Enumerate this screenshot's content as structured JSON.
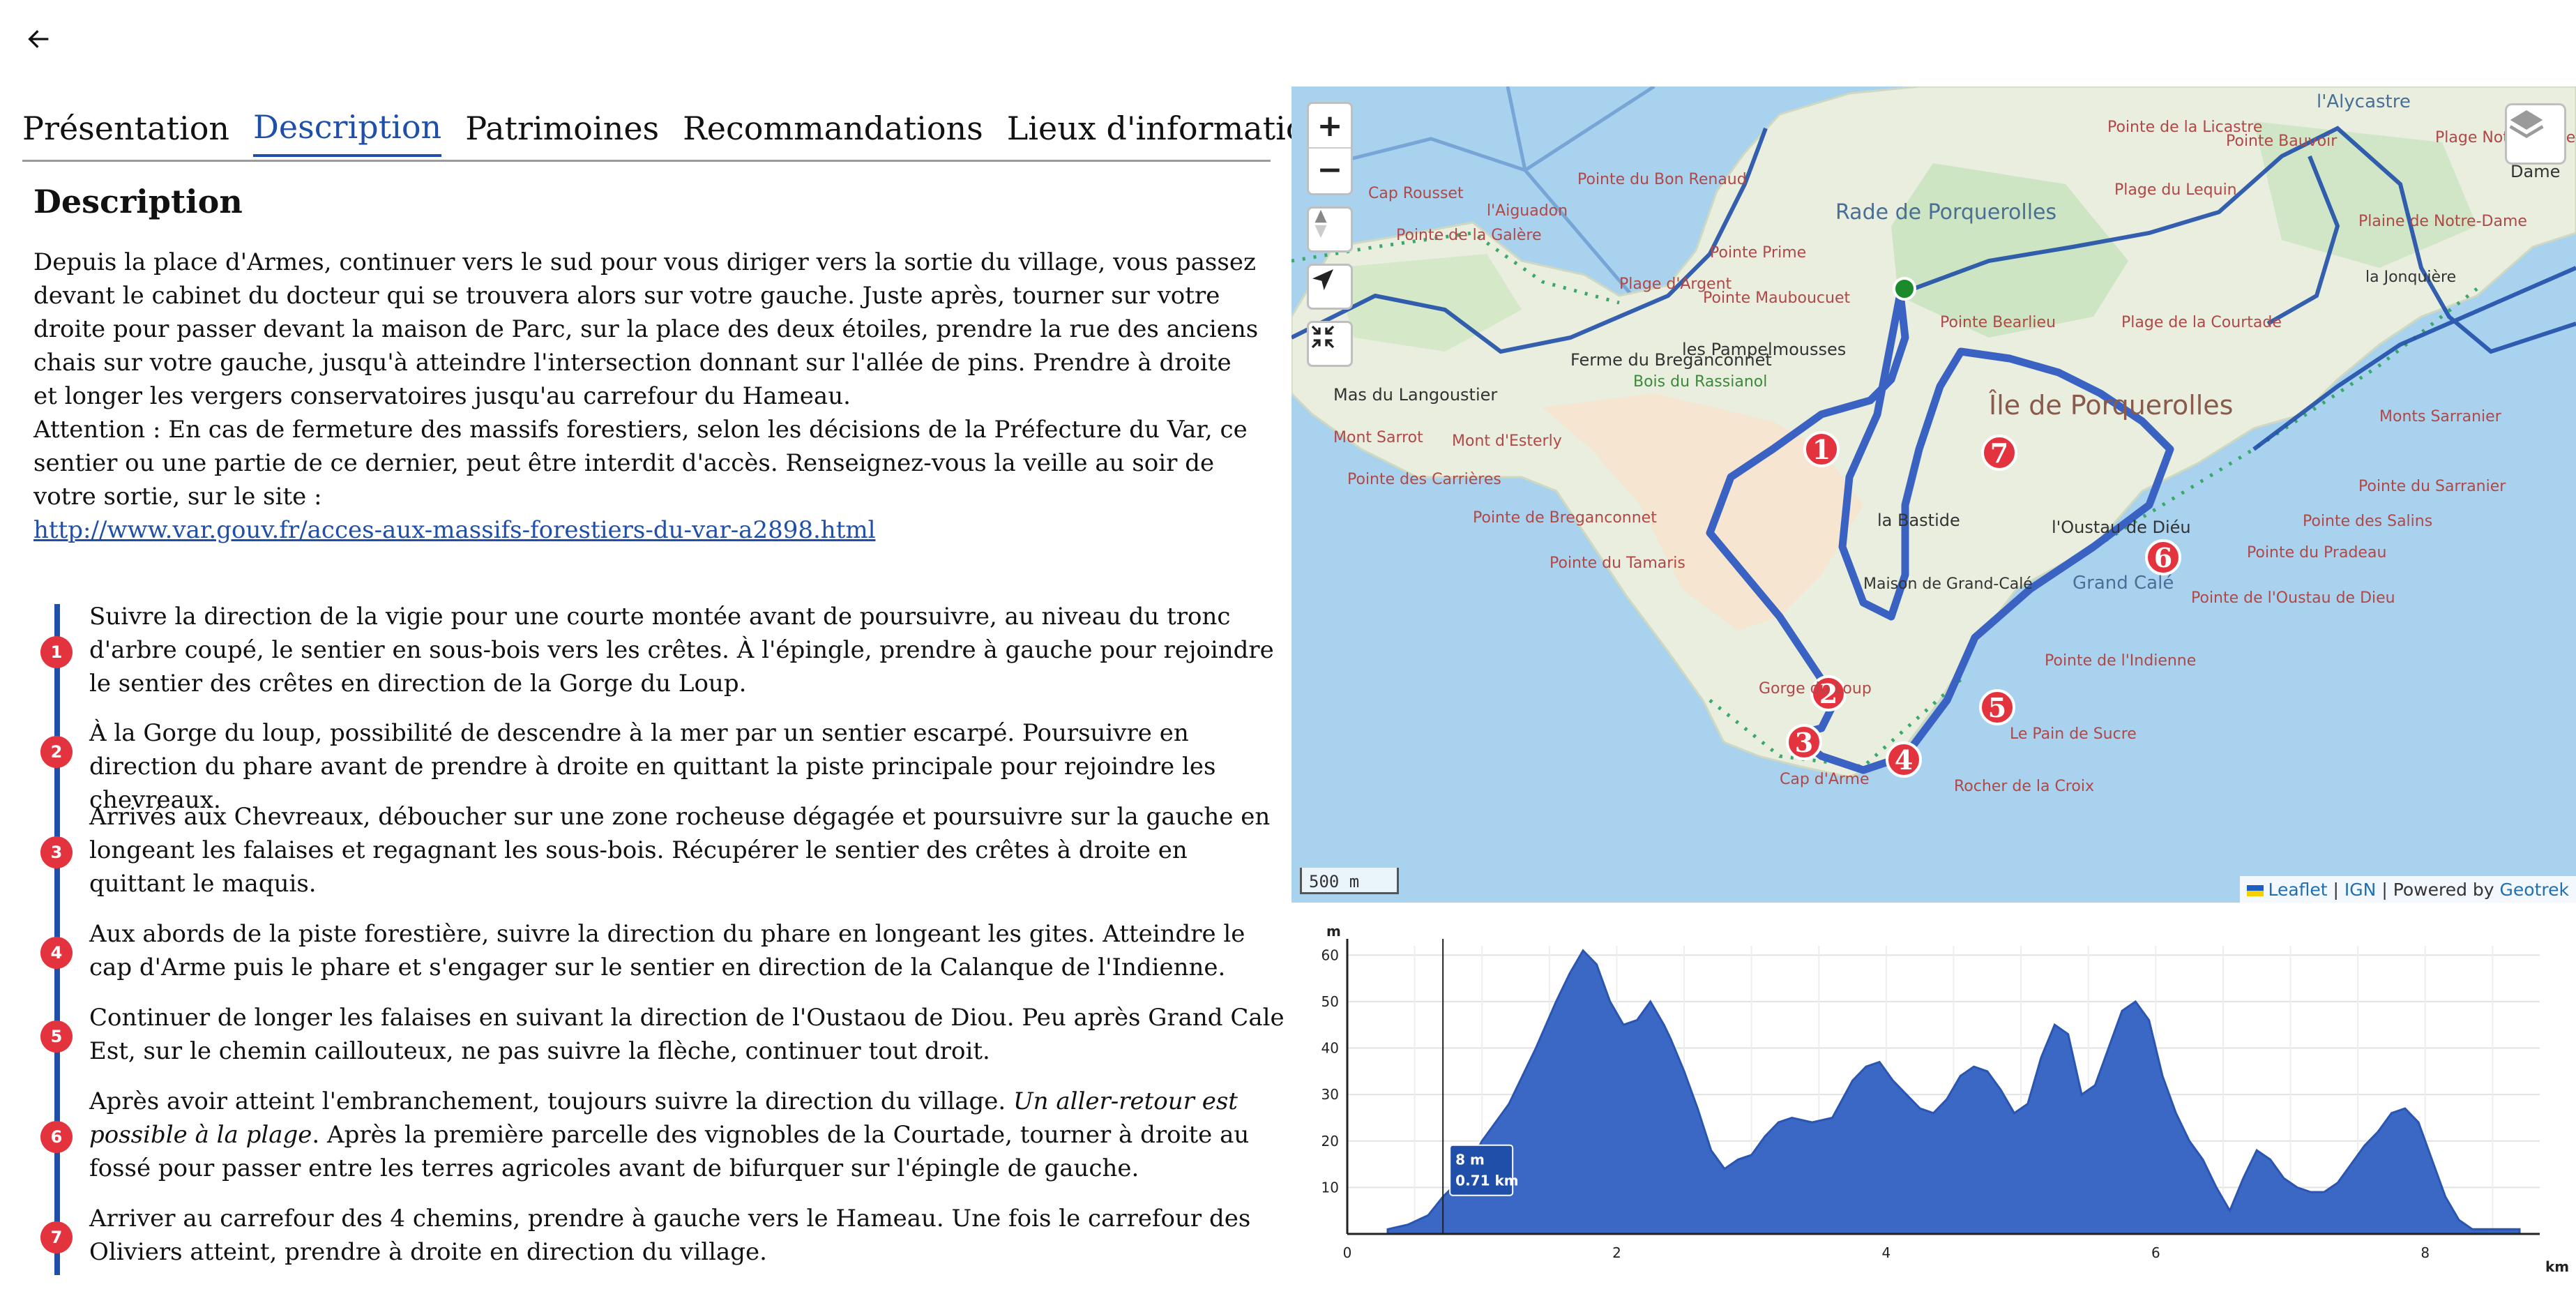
{
  "nav": {
    "back_icon": "arrow-left-icon"
  },
  "tabs": [
    {
      "label": "Présentation",
      "active": false
    },
    {
      "label": "Description",
      "active": true
    },
    {
      "label": "Patrimoines",
      "active": false
    },
    {
      "label": "Recommandations",
      "active": false
    },
    {
      "label": "Lieux d'informations",
      "active": false
    }
  ],
  "description": {
    "title": "Description",
    "paragraph1": "Depuis la place d'Armes, continuer vers le sud pour vous diriger vers la sortie du village, vous passez devant le cabinet du docteur qui se trouvera alors sur votre gauche. Juste après, tourner sur votre droite pour passer devant la maison de Parc, sur la place des deux étoiles, prendre la rue des anciens chais sur votre gauche, jusqu'à atteindre l'intersection donnant sur l'allée de pins. Prendre à droite et longer les vergers conservatoires jusqu'au carrefour du Hameau.",
    "paragraph2": "Attention : En cas de fermeture des massifs forestiers, selon les décisions de la Préfecture du Var, ce sentier ou une partie de ce dernier, peut être interdit d'accès.  Renseignez-vous la veille au soir de votre sortie, sur le site :",
    "link": "http://www.var.gouv.fr/acces-aux-massifs-forestiers-du-var-a2898.html"
  },
  "steps": [
    {
      "num": "1",
      "text": "Suivre la direction de la vigie pour une courte montée avant de poursuivre, au niveau du tronc d'arbre coupé, le sentier en sous-bois vers les crêtes. À l'épingle, prendre à gauche pour rejoindre le sentier des crêtes en direction de la Gorge du Loup."
    },
    {
      "num": "2",
      "text": "À la Gorge du loup, possibilité de descendre à la mer par un sentier escarpé. Poursuivre en direction du phare avant de prendre à droite en quittant la piste principale pour rejoindre les chevreaux."
    },
    {
      "num": "3",
      "text": "Arrivés aux Chevreaux, déboucher sur une zone rocheuse dégagée et poursuivre sur la gauche en longeant les falaises et regagnant les sous-bois. Récupérer le sentier des crêtes à droite en quittant le maquis."
    },
    {
      "num": "4",
      "text": "Aux abords de la piste forestière, suivre la direction du phare en longeant les gites. Atteindre le cap d'Arme puis le phare et s'engager sur le sentier en direction de la Calanque de l'Indienne."
    },
    {
      "num": "5",
      "text": "Continuer de longer les falaises en suivant la direction de l'Oustaou de Diou. Peu après Grand Cale Est, sur le chemin caillouteux, ne pas suivre la flèche, continuer tout droit."
    },
    {
      "num": "6",
      "text_before": "Après avoir atteint l'embranchement, toujours suivre la direction du village.  ",
      "text_italic": "Un aller-retour est possible à la plage",
      "text_after": ". Après la première parcelle des vignobles de la Courtade, tourner à droite au fossé pour passer entre les terres agricoles avant de bifurquer sur l'épingle de gauche."
    },
    {
      "num": "7",
      "text": "Arriver au carrefour des 4 chemins, prendre à gauche vers le Hameau. Une fois le carrefour des Oliviers atteint, prendre à droite en direction du village."
    }
  ],
  "map": {
    "zoom_in": "+",
    "zoom_out": "−",
    "reset_bearing_icon": "compass-icon",
    "locate_icon": "locate-arrow-icon",
    "fullscreen_icon": "collapse-arrows-icon",
    "layers_icon": "layers-icon",
    "scale": "500 m",
    "attribution_leaflet": "Leaflet",
    "attribution_sep1": " | ",
    "attribution_ign": "IGN",
    "attribution_powered": " | Powered by ",
    "attribution_geotrek": "Geotrek",
    "colors": {
      "sea": "#a9d2ee",
      "land": "#e9eedf",
      "route": "#1f4fa8",
      "marker": "#e2333f",
      "start": "#1a8a2a"
    },
    "place_labels": [
      "Rade de Porquerolles",
      "Île de Porquerolles",
      "Ferme du Breganconnet",
      "Mas du Langoustier",
      "les Pampelmousses",
      "Bois du Rassianol",
      "Pointe Prime",
      "Pointe Mauboucuet",
      "Pointe du Bon Renaud",
      "Cap Rousset",
      "la Bastide",
      "Maison de Grand-Calé",
      "Gorge du Loup",
      "Cap d'Arme",
      "Rocher de la Croix",
      "Le Pain de Sucre",
      "Grand Calé",
      "Pointe de l'Indienne",
      "Pointe de l'Oustau de Dieu",
      "l'Oustau de Diéu",
      "Pointe du Sarranier",
      "Pointe des Salins",
      "Plaine de Notre-Dame",
      "l'Alycastre",
      "la Jonquière",
      "Pointe du Tamaris",
      "Pointe de Breganconnet",
      "Pointe des Carrières",
      "Mont Sarrot",
      "Mont d'Esterly",
      "Plage d'Argent",
      "Plage du Lequin",
      "Pointe de la Galère",
      "Plage Notre-Dame",
      "Pointe Bearlieu",
      "Pointe de la Licastre",
      "Monts Sarranier",
      "Pointe du Pradeau",
      "l'Aiguadon",
      "Plage de la Courtade",
      "Pointe Bauvoir",
      "Dame"
    ],
    "markers": [
      "1",
      "2",
      "3",
      "4",
      "5",
      "6",
      "7"
    ]
  },
  "chart_data": {
    "type": "area",
    "title": "",
    "xlabel": "km",
    "ylabel": "m",
    "xlim": [
      0,
      8.85
    ],
    "ylim": [
      0,
      62
    ],
    "x_ticks": [
      "0",
      "2",
      "4",
      "6",
      "8"
    ],
    "y_ticks": [
      "10",
      "20",
      "30",
      "40",
      "50",
      "60"
    ],
    "tooltip": {
      "elevation": "8 m",
      "distance": "0.71 km",
      "x": 0.71,
      "y": 8
    },
    "series": [
      {
        "x": [
          0.3,
          0.45,
          0.6,
          0.71,
          0.85,
          1.0,
          1.2,
          1.4,
          1.55,
          1.65,
          1.75,
          1.85,
          1.95,
          2.05,
          2.15,
          2.25,
          2.35,
          2.4,
          2.5,
          2.6,
          2.7,
          2.8,
          2.9,
          3.0,
          3.1,
          3.2,
          3.3,
          3.45,
          3.6,
          3.75,
          3.85,
          3.95,
          4.05,
          4.15,
          4.25,
          4.35,
          4.45,
          4.55,
          4.65,
          4.75,
          4.85,
          4.95,
          5.05,
          5.15,
          5.25,
          5.35,
          5.45,
          5.55,
          5.65,
          5.75,
          5.85,
          5.95,
          6.05,
          6.15,
          6.25,
          6.35,
          6.45,
          6.55,
          6.65,
          6.75,
          6.85,
          6.95,
          7.05,
          7.15,
          7.25,
          7.35,
          7.45,
          7.55,
          7.65,
          7.75,
          7.85,
          7.95,
          8.05,
          8.15,
          8.25,
          8.35,
          8.45,
          8.55,
          8.7
        ],
        "y": [
          1,
          2,
          4,
          8,
          12,
          20,
          28,
          40,
          50,
          56,
          61,
          58,
          50,
          45,
          46,
          50,
          45,
          42,
          35,
          27,
          18,
          14,
          16,
          17,
          21,
          24,
          25,
          24,
          25,
          33,
          36,
          37,
          33,
          30,
          27,
          26,
          29,
          34,
          36,
          35,
          31,
          26,
          28,
          38,
          45,
          43,
          30,
          32,
          40,
          48,
          50,
          46,
          34,
          26,
          20,
          16,
          10,
          5,
          12,
          18,
          16,
          12,
          10,
          9,
          9,
          11,
          15,
          19,
          22,
          26,
          27,
          24,
          16,
          8,
          3,
          1,
          1,
          1,
          1
        ]
      }
    ]
  }
}
